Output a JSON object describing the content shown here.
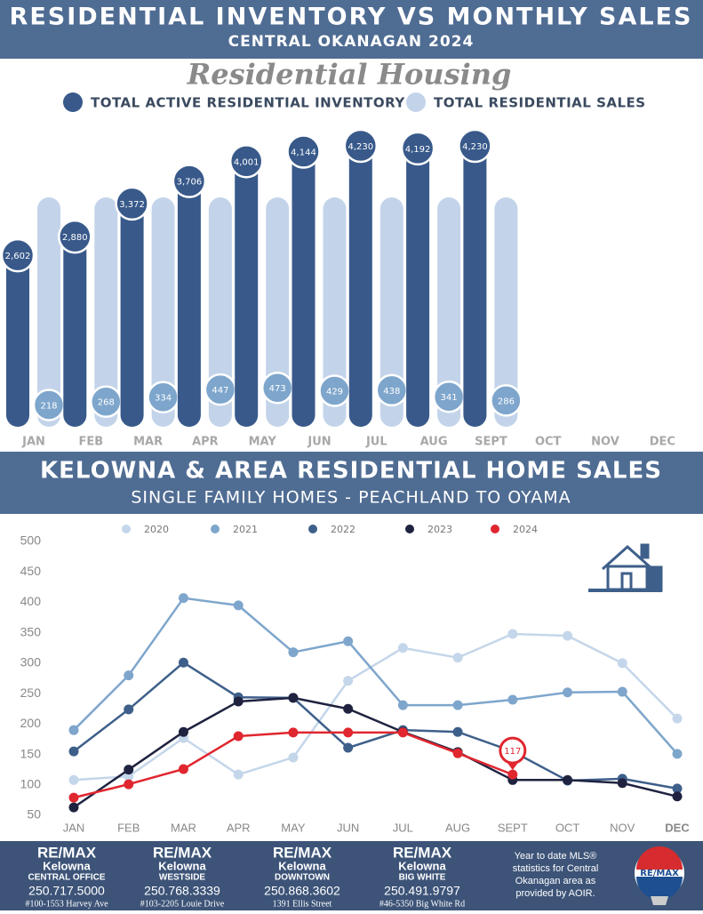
{
  "header": {
    "title": "RESIDENTIAL INVENTORY VS MONTHLY SALES",
    "subtitle": "CENTRAL OKANAGAN 2024"
  },
  "chart_data": [
    {
      "type": "bar",
      "title": "Residential Housing",
      "categories": [
        "JAN",
        "FEB",
        "MAR",
        "APR",
        "MAY",
        "JUN",
        "JUL",
        "AUG",
        "SEPT",
        "OCT",
        "NOV",
        "DEC"
      ],
      "series": [
        {
          "name": "TOTAL ACTIVE RESIDENTIAL INVENTORY",
          "color": "#38598a",
          "values": [
            2602,
            2880,
            3372,
            3706,
            4001,
            4144,
            4230,
            4192,
            4230,
            null,
            null,
            null
          ],
          "value_labels": [
            "2,602",
            "2,880",
            "3,372",
            "3,706",
            "4,001",
            "4,144",
            "4,230",
            "4,192",
            "4,230",
            null,
            null,
            null
          ]
        },
        {
          "name": "TOTAL RESIDENTIAL SALES",
          "color": "#c3d4ea",
          "values": [
            218,
            268,
            334,
            447,
            473,
            429,
            438,
            341,
            286,
            null,
            null,
            null
          ]
        }
      ]
    },
    {
      "type": "line",
      "title": "KELOWNA & AREA RESIDENTIAL HOME SALES",
      "subtitle": "SINGLE FAMILY HOMES - PEACHLAND TO OYAMA",
      "categories": [
        "JAN",
        "FEB",
        "MAR",
        "APR",
        "MAY",
        "JUN",
        "JUL",
        "AUG",
        "SEPT",
        "OCT",
        "NOV",
        "DEC"
      ],
      "ylim": [
        50,
        500
      ],
      "yticks": [
        50,
        100,
        150,
        200,
        250,
        300,
        350,
        400,
        450,
        500
      ],
      "series": [
        {
          "name": "2020",
          "color": "#c4d6ea",
          "values": [
            108,
            114,
            177,
            117,
            145,
            271,
            325,
            309,
            348,
            345,
            300,
            209
          ]
        },
        {
          "name": "2021",
          "color": "#7ea6cc",
          "values": [
            190,
            280,
            407,
            395,
            318,
            336,
            231,
            231,
            240,
            252,
            253,
            151
          ]
        },
        {
          "name": "2022",
          "color": "#3e5f8a",
          "values": [
            155,
            224,
            301,
            244,
            243,
            161,
            190,
            187,
            155,
            107,
            110,
            94
          ]
        },
        {
          "name": "2023",
          "color": "#1f2340",
          "values": [
            63,
            125,
            187,
            237,
            243,
            225,
            187,
            154,
            108,
            108,
            103,
            81
          ]
        },
        {
          "name": "2024",
          "color": "#e0262f",
          "values": [
            79,
            101,
            126,
            180,
            186,
            186,
            186,
            152,
            117,
            null,
            null,
            null
          ]
        }
      ]
    }
  ],
  "footer": {
    "offices": [
      {
        "brand": "RE/MAX",
        "city": "Kelowna",
        "office": "CENTRAL OFFICE",
        "phone": "250.717.5000",
        "address": "#100-1553 Harvey Ave"
      },
      {
        "brand": "RE/MAX",
        "city": "Kelowna",
        "office": "WESTSIDE",
        "phone": "250.768.3339",
        "address": "#103-2205 Louie Drive"
      },
      {
        "brand": "RE/MAX",
        "city": "Kelowna",
        "office": "DOWNTOWN",
        "phone": "250.868.3602",
        "address": "1391 Ellis Street"
      },
      {
        "brand": "RE/MAX",
        "city": "Kelowna",
        "office": "BIG WHITE",
        "phone": "250.491.9797",
        "address": "#46-5350 Big White Rd"
      }
    ],
    "note": "Year to date MLS® statistics for Central Okanagan area as provided by AOIR.",
    "logo": "RE/MAX"
  }
}
